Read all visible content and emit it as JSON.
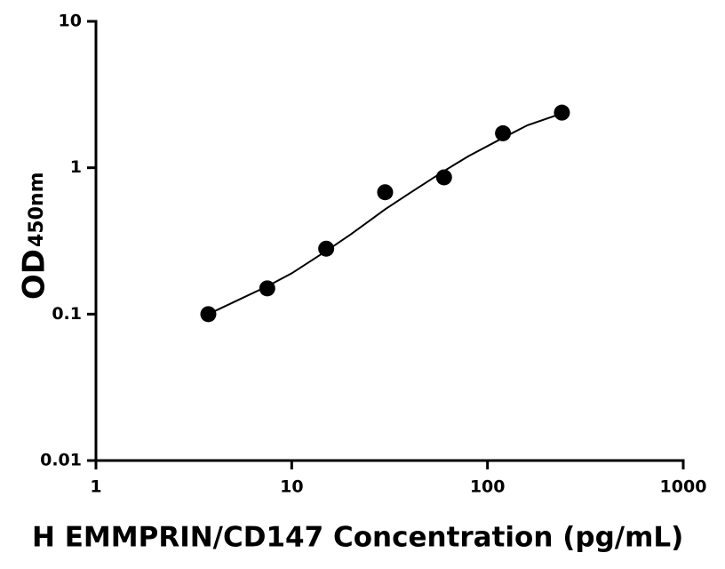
{
  "chart_data": {
    "type": "scatter",
    "x_label": "H EMMPRIN/CD147 Concentration (pg/mL)",
    "y_label": {
      "main": "OD",
      "sub": "450nm"
    },
    "x_scale": "log",
    "y_scale": "log",
    "xlim": [
      1,
      1000
    ],
    "xticks": [
      1,
      10,
      100,
      1000
    ],
    "ylim": [
      0.01,
      10
    ],
    "yticks": [
      0.01,
      0.1,
      1,
      10
    ],
    "series": [
      {
        "color": "#000000",
        "x": [
          3.75,
          7.5,
          15,
          30,
          60,
          120,
          240
        ],
        "values": [
          0.1,
          0.15,
          0.28,
          0.68,
          0.86,
          1.72,
          2.38
        ]
      }
    ],
    "fit": {
      "color": "#000000",
      "x": [
        3.75,
        5,
        7.5,
        10,
        15,
        20,
        30,
        40,
        60,
        80,
        120,
        160,
        240
      ],
      "values": [
        0.1,
        0.12,
        0.155,
        0.19,
        0.27,
        0.35,
        0.52,
        0.67,
        0.95,
        1.2,
        1.6,
        1.95,
        2.35
      ]
    }
  }
}
